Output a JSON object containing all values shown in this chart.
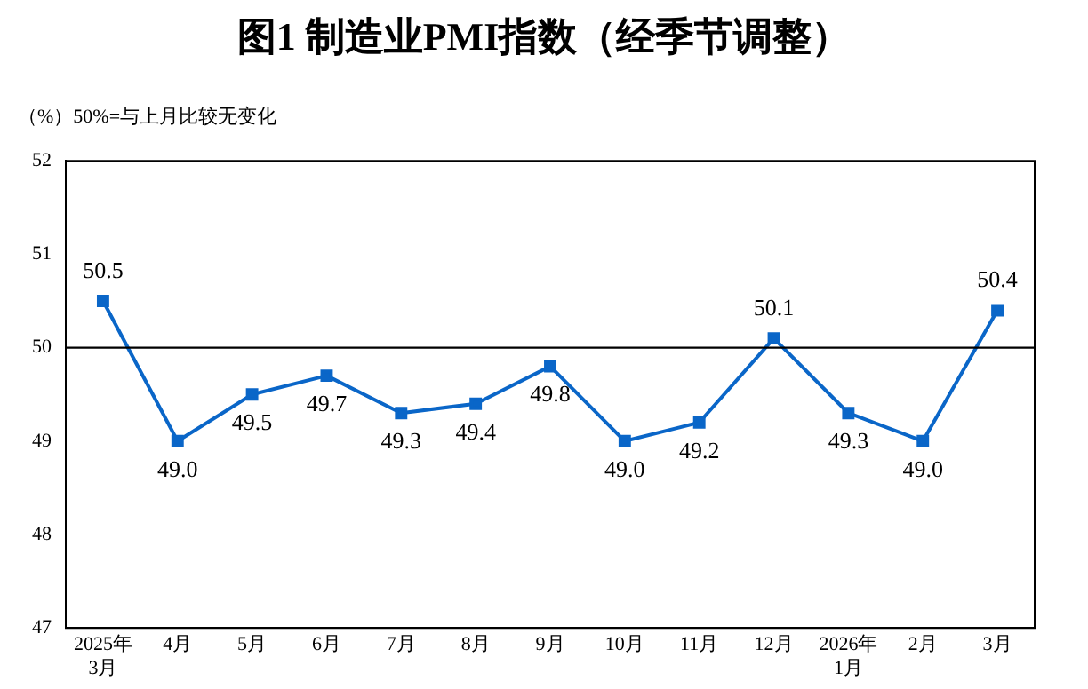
{
  "chart_data": {
    "type": "line",
    "title": "图1  制造业PMI指数（经季节调整）",
    "annotations": [
      "（%）50%=与上月比较无变化"
    ],
    "categories": [
      "2025年\n3月",
      "4月",
      "5月",
      "6月",
      "7月",
      "8月",
      "9月",
      "10月",
      "11月",
      "12月",
      "2026年\n1月",
      "2月",
      "3月"
    ],
    "series": [
      {
        "color": "#0a66c8",
        "values": [
          50.5,
          49.0,
          49.5,
          49.7,
          49.3,
          49.4,
          49.8,
          49.0,
          49.2,
          50.1,
          49.3,
          49.0,
          50.4
        ],
        "value_labels": [
          "50.5",
          "49.0",
          "49.5",
          "49.7",
          "49.3",
          "49.4",
          "49.8",
          "49.0",
          "49.2",
          "50.1",
          "49.3",
          "49.0",
          "50.4"
        ]
      }
    ],
    "ylim": [
      47,
      52
    ],
    "yticks": [
      47,
      48,
      49,
      50,
      51,
      52
    ],
    "ref_lines": [
      {
        "axis": "y",
        "value": 50,
        "color": "#000000"
      }
    ],
    "marker": "square",
    "line_style": "solid",
    "grid": false,
    "legend": false
  }
}
